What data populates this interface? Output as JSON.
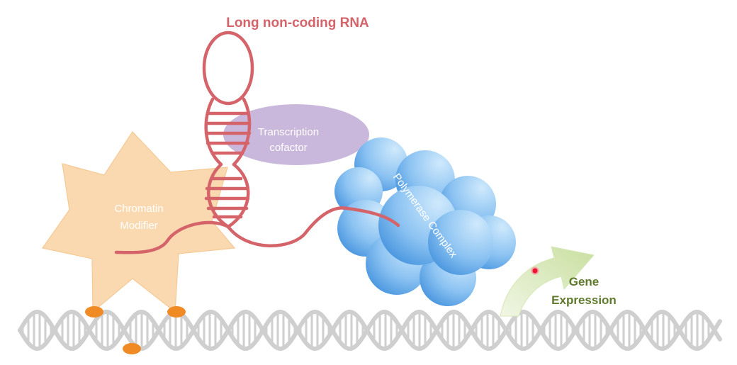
{
  "labels": {
    "lncrna": "Long non-coding RNA",
    "cofactor_line1": "Transcription",
    "cofactor_line2": "cofactor",
    "chromatin_line1": "Chromatin",
    "chromatin_line2": "Modifier",
    "polymerase": "Polymerase Complex",
    "gene_line1": "Gene",
    "gene_line2": "Expression"
  },
  "colors": {
    "rna": "#d4646a",
    "cofactor": "#c9b8dc",
    "chromatin": "#fad9b0",
    "polymerase_light": "#c2e2fa",
    "polymerase_dark": "#4f9be0",
    "arrow": "#d6e8b8",
    "gene_text": "#5f7a2c",
    "dna": "#cfcfcf",
    "methyl_mark": "#f08a24"
  }
}
